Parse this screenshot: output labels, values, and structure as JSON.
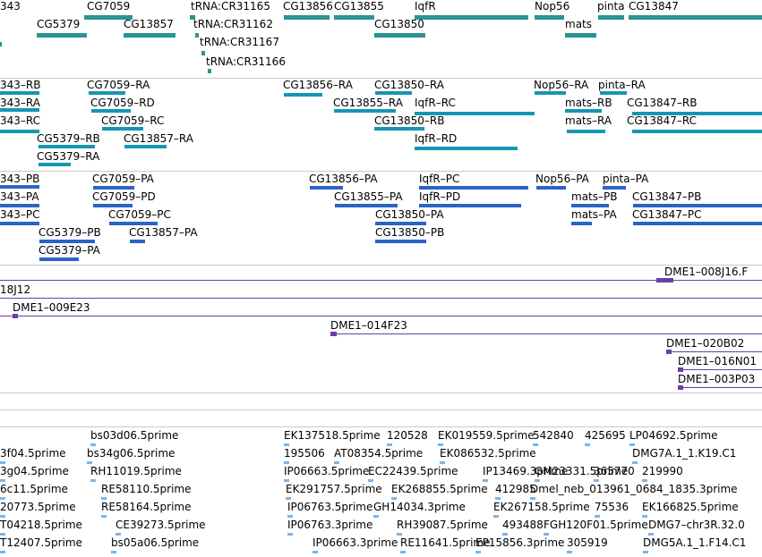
{
  "colors": {
    "gene": "#2a9393",
    "transcript": "#1696b4",
    "protein": "#2a63c9",
    "clone": "#6a3fa6",
    "est": "#7fb5e2",
    "separator": "#c9c9c9"
  },
  "tracks": [
    {
      "name": "gene-track",
      "color_key": "gene",
      "labels": [
        "343",
        "CG7059",
        "tRNA:CR31165",
        "CG13856",
        "CG13855",
        "IqfR",
        "Nop56",
        "pinta",
        "CG13847",
        "CG5379",
        "CG13857",
        "tRNA:CR31162",
        "CG13850",
        "mats",
        "tRNA:CR31167",
        "tRNA:CR31166"
      ]
    },
    {
      "name": "transcript-track",
      "color_key": "transcript",
      "labels": [
        "343–RB",
        "CG7059–RA",
        "CG13856–RA",
        "CG13850–RA",
        "Nop56–RA",
        "pinta–RA",
        "343–RA",
        "CG7059–RD",
        "CG13855–RA",
        "IqfR–RC",
        "mats–RB",
        "CG13847–RB",
        "343–RC",
        "CG7059–RC",
        "CG13850–RB",
        "mats–RA",
        "CG13847–RC",
        "CG5379–RB",
        "CG13857–RA",
        "IqfR–RD",
        "CG5379–RA"
      ]
    },
    {
      "name": "protein-track",
      "color_key": "protein",
      "labels": [
        "343–PB",
        "CG7059–PA",
        "CG13856–PA",
        "IqfR–PC",
        "Nop56–PA",
        "pinta–PA",
        "343–PA",
        "CG7059–PD",
        "CG13855–PA",
        "IqfR–PD",
        "mats–PB",
        "CG13847–PB",
        "343–PC",
        "CG7059–PC",
        "CG13850–PA",
        "mats–PA",
        "CG13847–PC",
        "CG5379–PB",
        "CG13857–PA",
        "CG13850–PB",
        "CG5379–PA"
      ]
    },
    {
      "name": "clone-track",
      "color_key": "clone",
      "labels": [
        "DME1–008J16.F",
        "18J12",
        "DME1–009E23",
        "DME1–014F23",
        "DME1–020B02",
        "DME1–016N01",
        "DME1–003P03"
      ]
    },
    {
      "name": "est-track",
      "color_key": "est",
      "labels": [
        "bs03d06.5prime",
        "EK137518.5prime",
        "120528",
        "EK019559.5prime",
        "542840",
        "425695",
        "LP04692.5prime",
        "3f04.5prime",
        "bs34g06.5prime",
        "195506",
        "AT08354.5prime",
        "EK086532.5prime",
        "DMG7A.1_1.K19.C1",
        "3g04.5prime",
        "RH11019.5prime",
        "IP06663.5prime",
        "EC22439.5prime",
        "IP13469.3prime",
        "GM23331.5prime",
        "365770",
        "219990",
        "6c11.5prime",
        "RE58110.5prime",
        "EK291757.5prime",
        "EK268855.5prime",
        "412985",
        "Dmel_neb_013961_0684_1835.3prime",
        "20773.5prime",
        "RE58164.5prime",
        "IP06763.5prime",
        "GH14034.3prime",
        "EK267158.5prime",
        "75536",
        "EK166825.5prime",
        "T04218.5prime",
        "CE39273.5prime",
        "IP06763.3prime",
        "RH39087.5prime",
        "493488",
        "FGH120F01.5prime",
        "DMG7–chr3R.32.0",
        "T12407.5prime",
        "bs05a06.5prime",
        "IP06663.3prime",
        "RE11641.5prime",
        "EP15856.3prime",
        "305919",
        "DMG5A.1_1.F14.C1"
      ]
    }
  ]
}
